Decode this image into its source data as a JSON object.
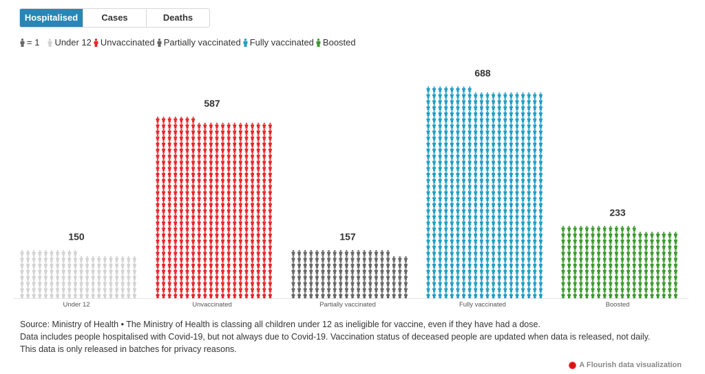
{
  "tabs": [
    {
      "label": "Hospitalised",
      "active": true
    },
    {
      "label": "Cases",
      "active": false
    },
    {
      "label": "Deaths",
      "active": false
    }
  ],
  "legend": {
    "unit_label": "= 1",
    "unit_color": "#666666",
    "items": [
      {
        "label": "Under 12",
        "color": "#d3d3d3"
      },
      {
        "label": "Unvaccinated",
        "color": "#e8262b"
      },
      {
        "label": "Partially vaccinated",
        "color": "#666666"
      },
      {
        "label": "Fully vaccinated",
        "color": "#1f9ec5"
      },
      {
        "label": "Boosted",
        "color": "#3a9a2c"
      }
    ]
  },
  "chart_data": {
    "type": "bar",
    "subtype": "pictogram",
    "unit": "1 person per icon",
    "icons_per_row": 20,
    "categories": [
      "Under 12",
      "Unvaccinated",
      "Partially vaccinated",
      "Fully vaccinated",
      "Boosted"
    ],
    "values": [
      150,
      587,
      157,
      688,
      233
    ],
    "colors": [
      "#d3d3d3",
      "#e8262b",
      "#666666",
      "#1f9ec5",
      "#3a9a2c"
    ],
    "data_labels": [
      "150",
      "587",
      "157",
      "688",
      "233"
    ],
    "title": "",
    "xlabel": "",
    "ylabel": "",
    "grid": false,
    "legend": "top-left"
  },
  "footer": {
    "lines": [
      "Source: Ministry of Health • The Ministry of Health is classing all children under 12 as ineligible for vaccine, even if they have had a dose.",
      "Data includes people hospitalised with Covid-19, but not always due to Covid-19. Vaccination status of deceased people are updated when data is released, not daily.",
      "This data is only released in batches for privacy reasons."
    ],
    "credit": "A Flourish data visualization"
  }
}
